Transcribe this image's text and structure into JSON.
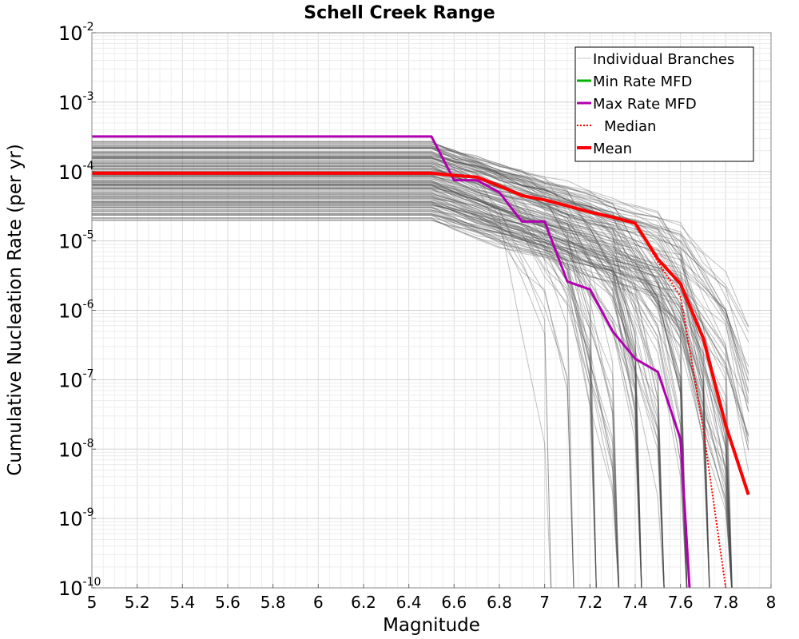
{
  "chart_data": {
    "type": "line",
    "title": "Schell Creek Range",
    "xlabel": "Magnitude",
    "ylabel": "Cumulative Nucleation Rate (per yr)",
    "xlim": [
      5,
      8
    ],
    "ylim_exponents": [
      -10,
      -2
    ],
    "yscale": "log",
    "grid": true,
    "x_ticks": [
      "5",
      "5.2",
      "5.4",
      "5.6",
      "5.8",
      "6",
      "6.2",
      "6.4",
      "6.6",
      "6.8",
      "7",
      "7.2",
      "7.4",
      "7.6",
      "7.8",
      "8"
    ],
    "y_ticks": [
      {
        "base": "10",
        "exp": "-2"
      },
      {
        "base": "10",
        "exp": "-3"
      },
      {
        "base": "10",
        "exp": "-4"
      },
      {
        "base": "10",
        "exp": "-5"
      },
      {
        "base": "10",
        "exp": "-6"
      },
      {
        "base": "10",
        "exp": "-7"
      },
      {
        "base": "10",
        "exp": "-8"
      },
      {
        "base": "10",
        "exp": "-9"
      },
      {
        "base": "10",
        "exp": "-10"
      }
    ],
    "legend_position": "top-right",
    "legend": [
      {
        "label": "Individual Branches",
        "color": "#c8c8c8",
        "style": "solid"
      },
      {
        "label": "Min Rate MFD",
        "color": "#00b000",
        "style": "solid"
      },
      {
        "label": "Max Rate MFD",
        "color": "#b000b0",
        "style": "solid"
      },
      {
        "label": "Median",
        "color": "#ff0000",
        "style": "dotted"
      },
      {
        "label": "Mean",
        "color": "#ff0000",
        "style": "solid"
      }
    ],
    "series": [
      {
        "name": "Max Rate MFD",
        "color": "#b000b0",
        "x": [
          5.0,
          6.5,
          6.6,
          6.7,
          6.8,
          6.9,
          7.0,
          7.1,
          7.2,
          7.3,
          7.4,
          7.5,
          7.6,
          7.64
        ],
        "y": [
          0.00032,
          0.00032,
          7.5e-05,
          7.5e-05,
          5e-05,
          1.9e-05,
          1.9e-05,
          2.6e-06,
          2e-06,
          5e-07,
          2e-07,
          1.3e-07,
          1.4e-08,
          1e-10
        ]
      },
      {
        "name": "Median",
        "color": "#ff0000",
        "dashed": true,
        "x": [
          5.0,
          6.5,
          6.7,
          6.9,
          7.0,
          7.1,
          7.2,
          7.3,
          7.4,
          7.5,
          7.6,
          7.7,
          7.8
        ],
        "y": [
          9.2e-05,
          9.2e-05,
          8.2e-05,
          4.6e-05,
          3.9e-05,
          3.2e-05,
          2.6e-05,
          2.2e-05,
          1.8e-05,
          5e-06,
          1.6e-06,
          2e-08,
          1e-10
        ]
      },
      {
        "name": "Mean",
        "color": "#ff0000",
        "x": [
          5.0,
          6.5,
          6.6,
          6.7,
          6.8,
          6.9,
          7.0,
          7.1,
          7.2,
          7.3,
          7.4,
          7.5,
          7.6,
          7.7,
          7.8,
          7.9
        ],
        "y": [
          9.5e-05,
          9.5e-05,
          8.8e-05,
          8.3e-05,
          6.2e-05,
          4.5e-05,
          3.9e-05,
          3.2e-05,
          2.6e-05,
          2.2e-05,
          1.8e-05,
          5.5e-06,
          2.4e-06,
          4e-07,
          2.2e-08,
          2.2e-09
        ]
      }
    ],
    "branches": {
      "count": 160,
      "color": "#4d4d4d",
      "plateau_range": [
        1.9e-05,
        0.00028
      ],
      "note": "individual logic-tree branch MFDs, shown as dense grey bundle"
    }
  }
}
